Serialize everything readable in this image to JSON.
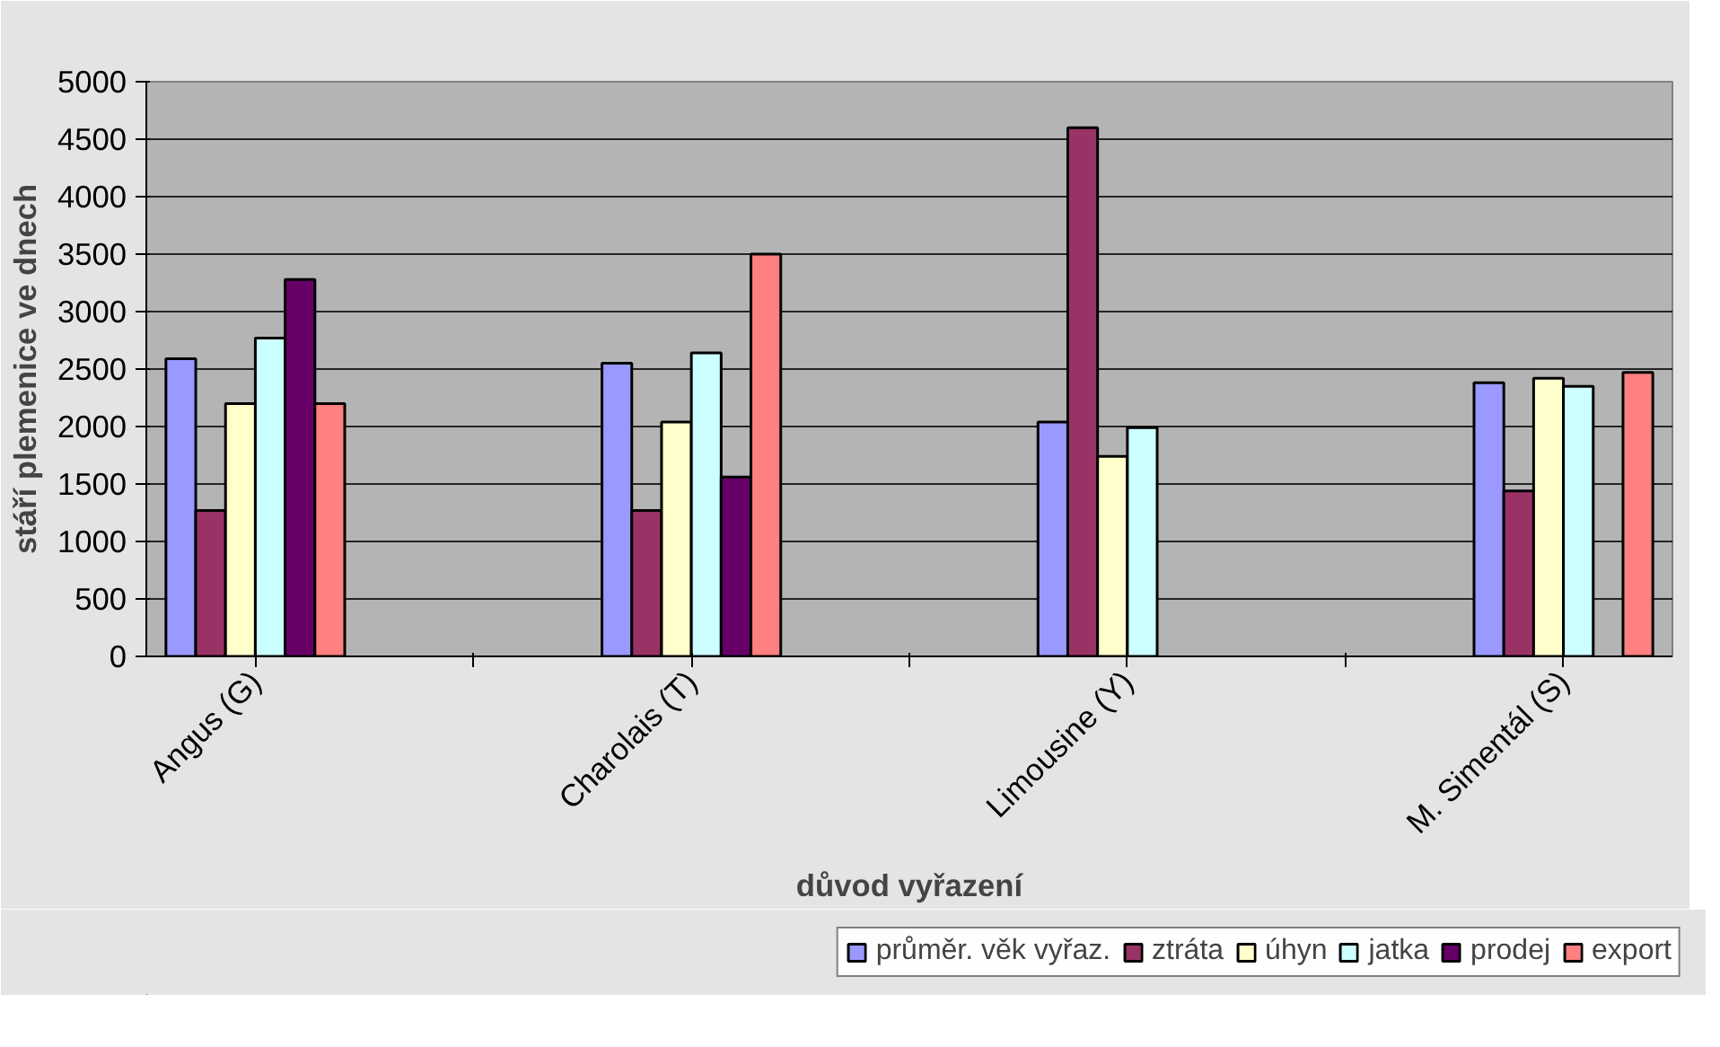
{
  "chart_data": {
    "type": "bar",
    "xlabel": "důvod vyřazení",
    "ylabel": "stáří plemenice ve dnech",
    "categories": [
      "Angus (G)",
      null,
      "Charolais (T)",
      null,
      "Limousine (Y)",
      null,
      "M. Simentál (S)"
    ],
    "series": [
      {
        "name": "průměr. věk vyřaz.",
        "color": "#9999ff",
        "values": [
          2590,
          null,
          2550,
          null,
          2040,
          null,
          2380
        ]
      },
      {
        "name": "ztráta",
        "color": "#993366",
        "values": [
          1270,
          null,
          1270,
          null,
          4600,
          null,
          1440
        ]
      },
      {
        "name": "úhyn",
        "color": "#ffffcc",
        "values": [
          2200,
          null,
          2040,
          null,
          1740,
          null,
          2420
        ]
      },
      {
        "name": "jatka",
        "color": "#ccffff",
        "values": [
          2770,
          null,
          2640,
          null,
          1990,
          null,
          2350
        ]
      },
      {
        "name": "prodej",
        "color": "#660066",
        "values": [
          3280,
          null,
          1560,
          null,
          null,
          null,
          null
        ]
      },
      {
        "name": "export",
        "color": "#ff8080",
        "values": [
          2200,
          null,
          3500,
          null,
          null,
          null,
          2470
        ]
      }
    ],
    "ylim": [
      0,
      5000
    ],
    "yticks": [
      0,
      500,
      1000,
      1500,
      2000,
      2500,
      3000,
      3500,
      4000,
      4500,
      5000
    ],
    "grid": "y",
    "legend": "bottom right"
  }
}
